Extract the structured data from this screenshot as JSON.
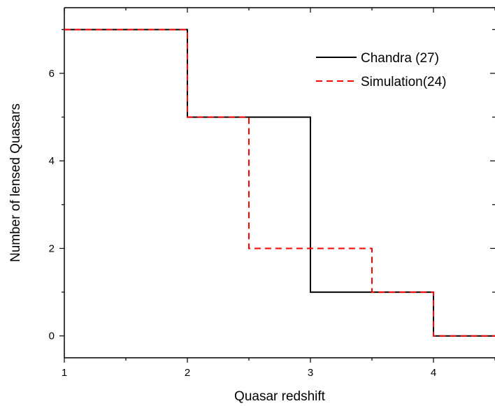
{
  "chart_data": {
    "type": "line",
    "title": "",
    "xlabel": "Quasar redshift",
    "ylabel": "Number of lensed Quasars",
    "xlim": [
      1,
      4.5
    ],
    "ylim": [
      -0.5,
      7.5
    ],
    "xticks": [
      1,
      2,
      3,
      4
    ],
    "yticks": [
      0,
      2,
      4,
      6
    ],
    "grid": false,
    "legend_position": "top-right",
    "series": [
      {
        "name": "Chandra (27)",
        "style": "solid",
        "color": "#000000",
        "x": [
          1,
          2,
          2,
          3,
          3,
          4,
          4,
          4.5
        ],
        "y": [
          7,
          7,
          5,
          5,
          1,
          1,
          0,
          0
        ]
      },
      {
        "name": "Simulation(24)",
        "style": "dashed",
        "color": "#ff0000",
        "x": [
          1,
          2,
          2,
          2.5,
          2.5,
          3.5,
          3.5,
          4,
          4,
          4.5
        ],
        "y": [
          7,
          7,
          5,
          5,
          2,
          2,
          1,
          1,
          0,
          0
        ]
      }
    ]
  }
}
